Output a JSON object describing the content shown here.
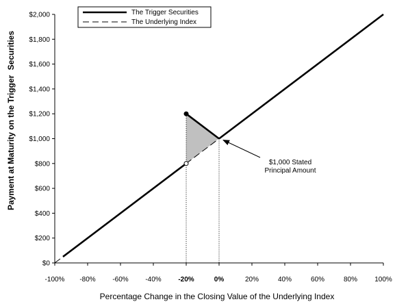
{
  "chart_data": {
    "type": "line",
    "xlabel": "Percentage Change in the Closing Value of the Underlying Index",
    "ylabel_parts": [
      "Payment at Maturity on the Trigger",
      "Securities"
    ],
    "x_ticks": [
      "-100%",
      "-80%",
      "-60%",
      "-40%",
      "-20%",
      "0%",
      "20%",
      "40%",
      "60%",
      "80%",
      "100%"
    ],
    "x_tick_values": [
      -100,
      -80,
      -60,
      -40,
      -20,
      0,
      20,
      40,
      60,
      80,
      100
    ],
    "bold_x_ticks": [
      "-20%",
      "0%"
    ],
    "y_ticks": [
      "$0",
      "$200",
      "$400",
      "$600",
      "$800",
      "$1,000",
      "$1,200",
      "$1,400",
      "$1,600",
      "$1,800",
      "$2,000"
    ],
    "y_tick_values": [
      0,
      200,
      400,
      600,
      800,
      1000,
      1200,
      1400,
      1600,
      1800,
      2000
    ],
    "xlim": [
      -100,
      100
    ],
    "ylim": [
      0,
      2000
    ],
    "grid": false,
    "legend_position": "top-left",
    "series": [
      {
        "name": "The Trigger Securities",
        "style": "solid-thick",
        "color": "#000000",
        "segments": [
          {
            "x": [
              -95,
              -20
            ],
            "y": [
              50,
              800
            ]
          },
          {
            "x": [
              -20,
              0
            ],
            "y": [
              1200,
              1000
            ]
          },
          {
            "x": [
              0,
              100
            ],
            "y": [
              1000,
              2000
            ]
          }
        ]
      },
      {
        "name": "The Underlying Index",
        "style": "dashed-thin",
        "color": "#000000",
        "segments": [
          {
            "x": [
              -100,
              100
            ],
            "y": [
              0,
              2000
            ]
          }
        ]
      }
    ],
    "shaded_region": {
      "points": [
        [
          -20,
          1200
        ],
        [
          0,
          1000
        ],
        [
          -20,
          800
        ]
      ],
      "color": "#c0c0c0"
    },
    "markers": [
      {
        "x": -20,
        "y": 1200,
        "filled": true
      },
      {
        "x": -20,
        "y": 800,
        "filled": false
      }
    ],
    "reference_lines_x": [
      -20,
      0
    ],
    "annotation": {
      "lines": [
        "$1,000 Stated",
        "Principal Amount"
      ],
      "target": {
        "x": 0,
        "y": 1000
      }
    }
  }
}
